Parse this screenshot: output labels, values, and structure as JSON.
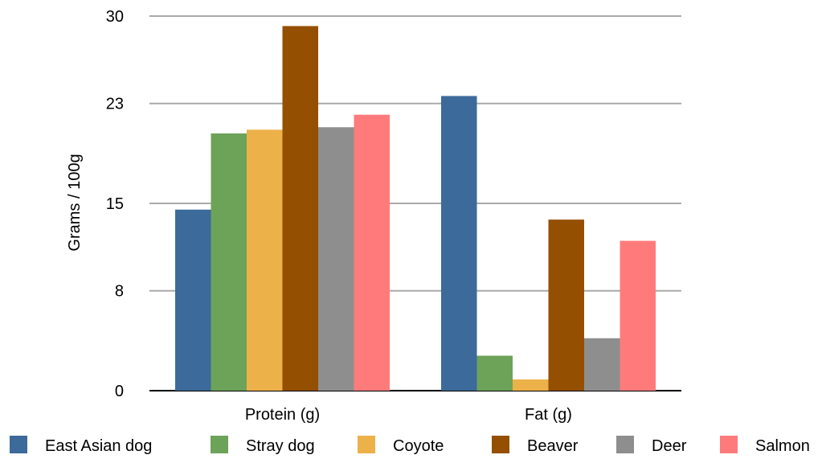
{
  "chart_data": {
    "type": "bar",
    "title": "",
    "xlabel": "",
    "ylabel": "Grams / 100g",
    "ylim": [
      0,
      30
    ],
    "y_ticks": [
      0,
      8,
      15,
      23,
      30
    ],
    "grid": "horizontal",
    "legend_position": "bottom",
    "categories": [
      "Protein (g)",
      "Fat (g)"
    ],
    "series": [
      {
        "name": "East Asian dog",
        "color": "#3C6A9A",
        "values": [
          14.5,
          23.6
        ]
      },
      {
        "name": "Stray dog",
        "color": "#6CA358",
        "values": [
          20.6,
          2.8
        ]
      },
      {
        "name": "Coyote",
        "color": "#EDB14A",
        "values": [
          20.9,
          0.9
        ]
      },
      {
        "name": "Beaver",
        "color": "#944F00",
        "values": [
          29.2,
          13.7
        ]
      },
      {
        "name": "Deer",
        "color": "#8E8E8E",
        "values": [
          21.1,
          4.2
        ]
      },
      {
        "name": "Salmon",
        "color": "#FF7B7B",
        "values": [
          22.1,
          12.0
        ]
      }
    ]
  }
}
